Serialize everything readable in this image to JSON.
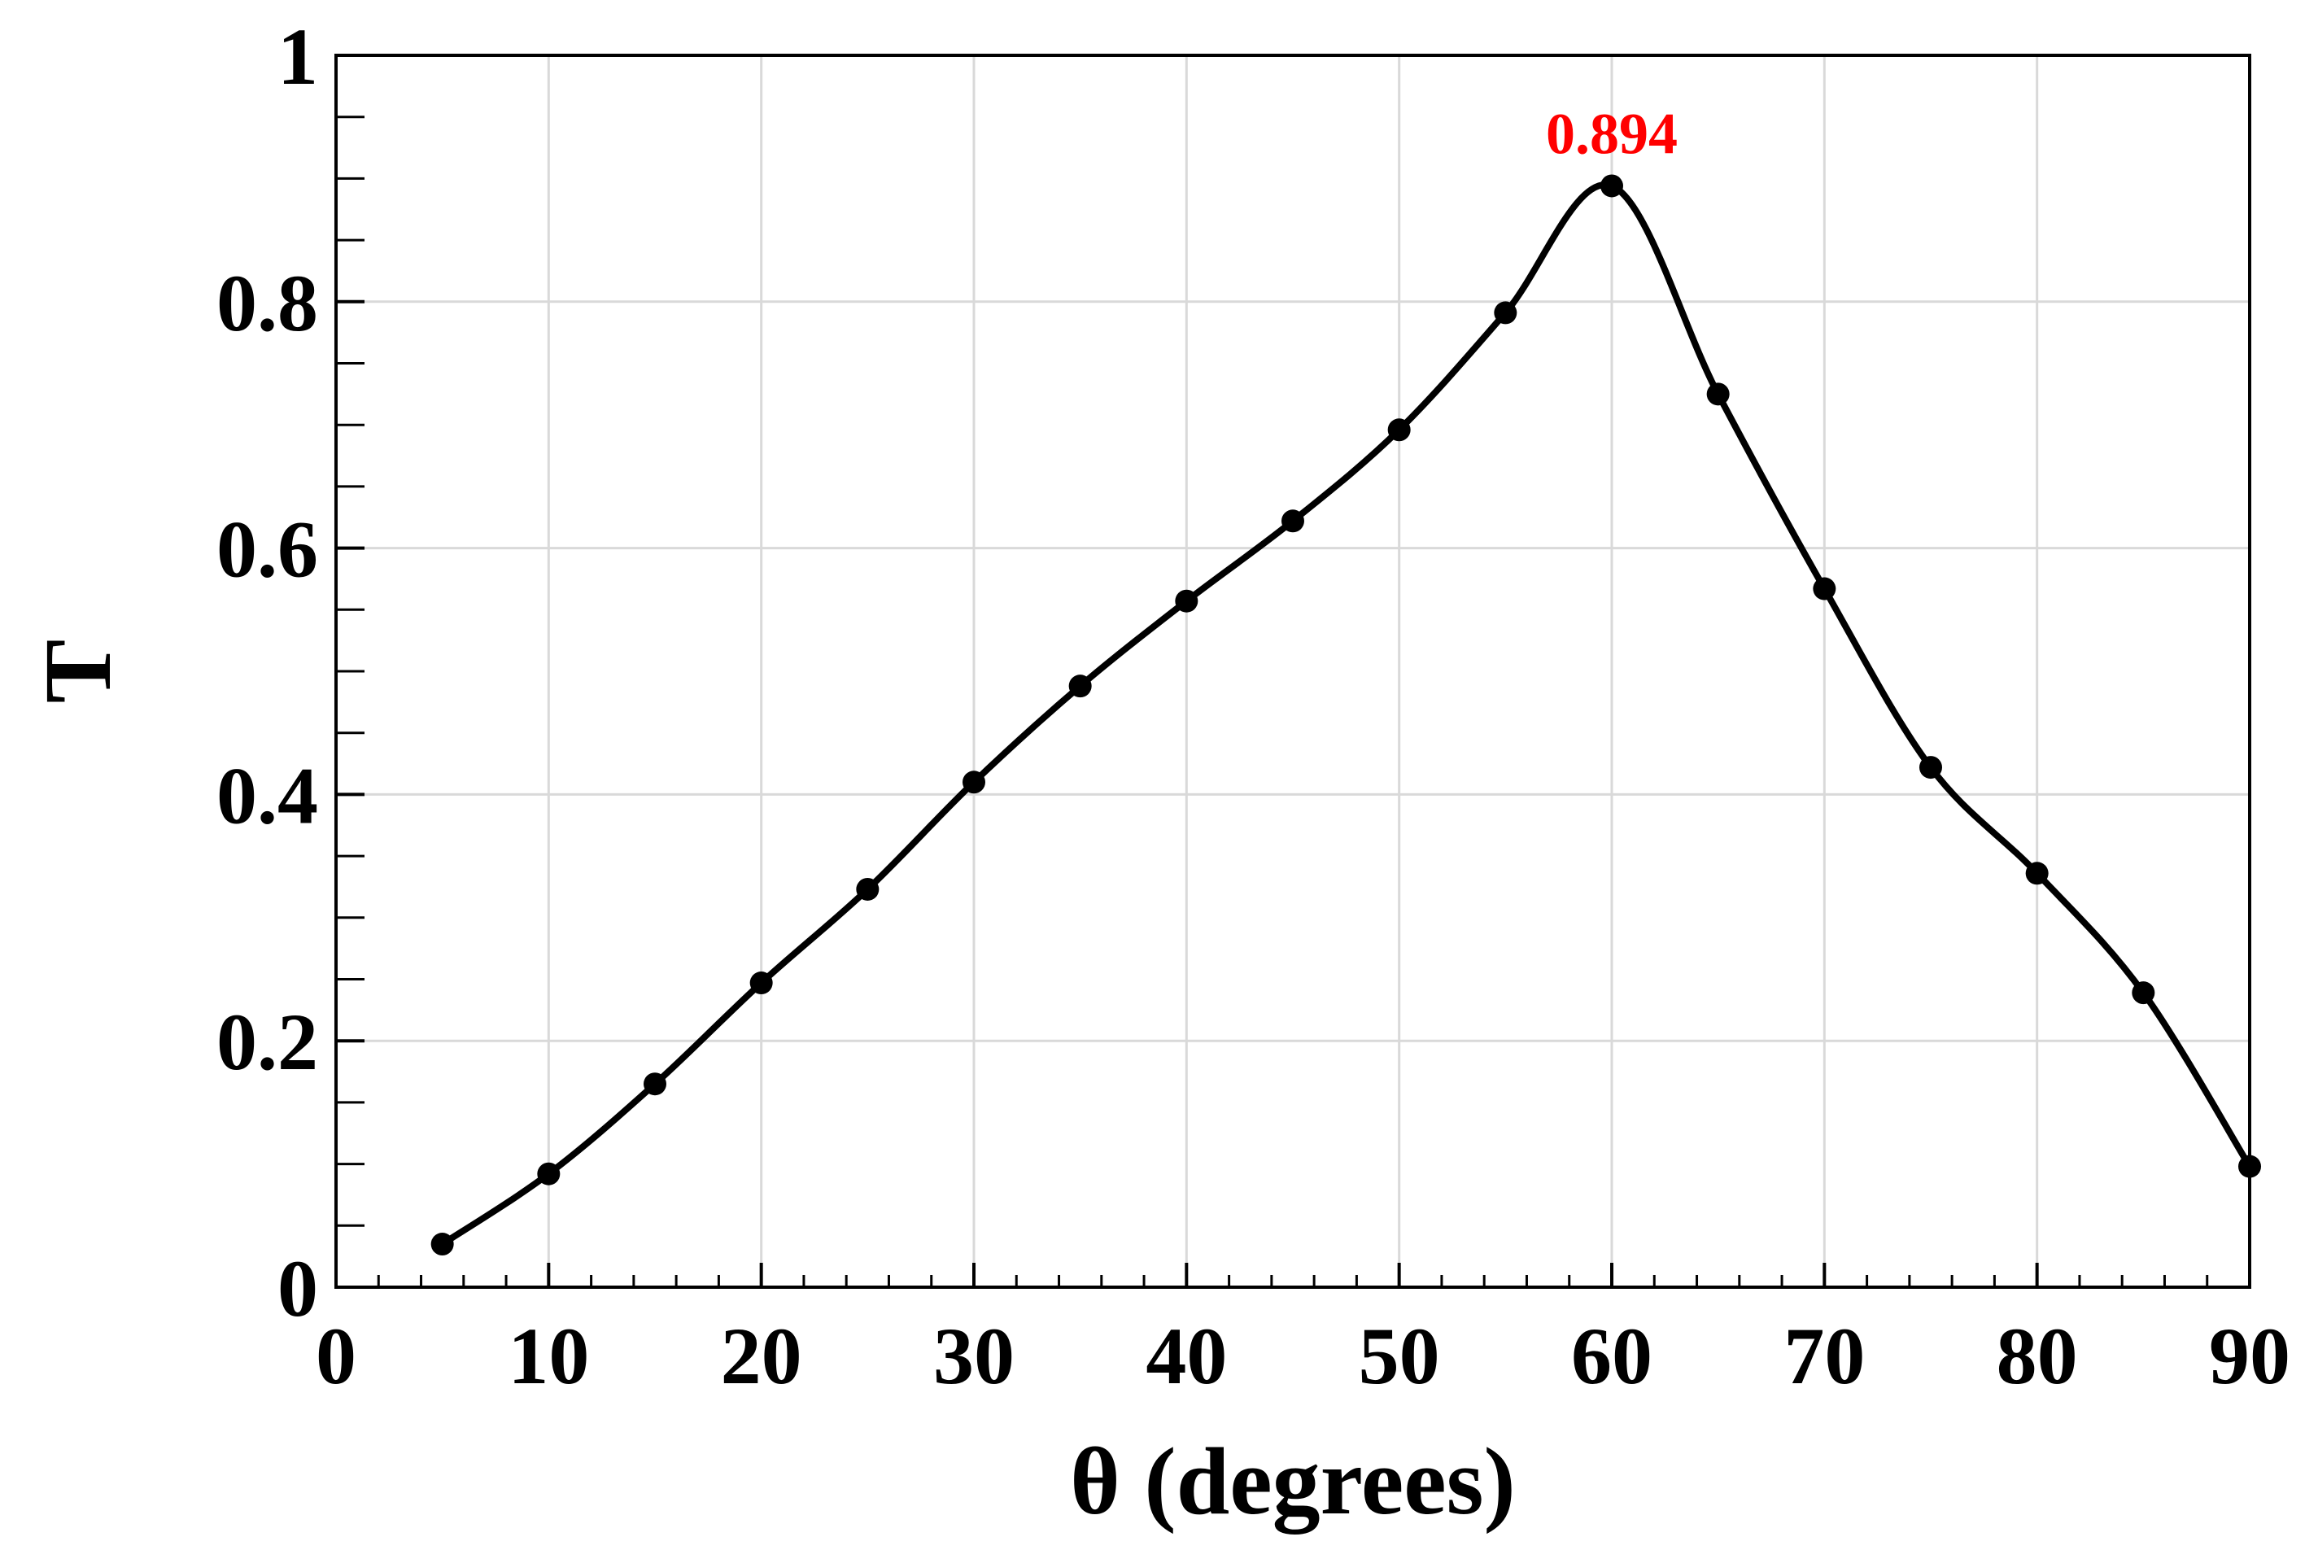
{
  "chart_data": {
    "type": "line",
    "xlabel": "θ (degrees)",
    "ylabel": "T",
    "xlim": [
      0,
      90
    ],
    "ylim": [
      0,
      1
    ],
    "x_ticks": [
      "0",
      "10",
      "20",
      "30",
      "40",
      "50",
      "60",
      "70",
      "80",
      "90"
    ],
    "y_ticks": [
      "0",
      "0.2",
      "0.4",
      "0.6",
      "0.8",
      "1"
    ],
    "grid": true,
    "series": [
      {
        "color": "#000000",
        "markers": true,
        "x": [
          5,
          10,
          15,
          20,
          25,
          30,
          35,
          40,
          45,
          50,
          55,
          60,
          65,
          70,
          75,
          80,
          85,
          90
        ],
        "y": [
          0.035,
          0.092,
          0.165,
          0.247,
          0.323,
          0.41,
          0.488,
          0.557,
          0.622,
          0.696,
          0.791,
          0.894,
          0.725,
          0.567,
          0.422,
          0.336,
          0.239,
          0.098
        ]
      }
    ],
    "annotations": [
      {
        "text": "0.894",
        "x": 60,
        "y": 0.894,
        "color": "#ff0000"
      }
    ]
  }
}
